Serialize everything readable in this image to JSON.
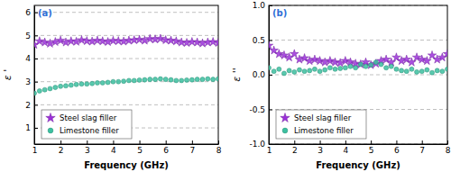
{
  "chart_data": [
    {
      "type": "scatter",
      "title": "(a)",
      "x_label": "Frequency (GHz)",
      "y_label": "ε '",
      "x": [
        1,
        1.2,
        1.4,
        1.6,
        1.8,
        2,
        2.2,
        2.4,
        2.6,
        2.8,
        3,
        3.2,
        3.4,
        3.6,
        3.8,
        4,
        4.2,
        4.4,
        4.6,
        4.8,
        5,
        5.2,
        5.4,
        5.6,
        5.8,
        6,
        6.2,
        6.4,
        6.6,
        6.8,
        7,
        7.2,
        7.4,
        7.6,
        7.8,
        8
      ],
      "xlim": [
        1,
        8
      ],
      "xticks": [
        1,
        2,
        3,
        4,
        5,
        6,
        7,
        8
      ],
      "ylim": [
        0.3,
        6.3
      ],
      "yticks": [
        1,
        2,
        3,
        4,
        5,
        6
      ],
      "grid": true,
      "legend": "lower left",
      "series": [
        {
          "name": "Steel slag filler",
          "color": "#9b30d9",
          "marker": "star",
          "values": [
            4.6,
            4.75,
            4.7,
            4.65,
            4.72,
            4.78,
            4.7,
            4.75,
            4.73,
            4.8,
            4.76,
            4.74,
            4.78,
            4.75,
            4.72,
            4.77,
            4.76,
            4.74,
            4.78,
            4.8,
            4.82,
            4.78,
            4.85,
            4.83,
            4.86,
            4.8,
            4.78,
            4.75,
            4.7,
            4.68,
            4.72,
            4.7,
            4.66,
            4.7,
            4.72,
            4.68
          ]
        },
        {
          "name": "Limestone filler",
          "color": "#3cc0a0",
          "marker": "circle",
          "values": [
            2.5,
            2.6,
            2.65,
            2.7,
            2.75,
            2.8,
            2.82,
            2.85,
            2.88,
            2.9,
            2.9,
            2.92,
            2.95,
            2.95,
            2.97,
            3.0,
            3.0,
            3.02,
            3.05,
            3.05,
            3.07,
            3.08,
            3.1,
            3.1,
            3.12,
            3.1,
            3.08,
            3.05,
            3.05,
            3.07,
            3.08,
            3.1,
            3.1,
            3.12,
            3.1,
            3.12
          ]
        }
      ]
    },
    {
      "type": "scatter",
      "title": "(b)",
      "x_label": "Frequency (GHz)",
      "y_label": "ε ''",
      "x": [
        1,
        1.2,
        1.4,
        1.6,
        1.8,
        2,
        2.2,
        2.4,
        2.6,
        2.8,
        3,
        3.2,
        3.4,
        3.6,
        3.8,
        4,
        4.2,
        4.4,
        4.6,
        4.8,
        5,
        5.2,
        5.4,
        5.6,
        5.8,
        6,
        6.2,
        6.4,
        6.6,
        6.8,
        7,
        7.2,
        7.4,
        7.6,
        7.8,
        8
      ],
      "xlim": [
        1,
        8
      ],
      "xticks": [
        1,
        2,
        3,
        4,
        5,
        6,
        7,
        8
      ],
      "ylim": [
        -1,
        1
      ],
      "yticks": [
        {
          "value": -1,
          "label": "-1.0"
        },
        {
          "value": -0.5,
          "label": "-0.5"
        },
        {
          "value": 0,
          "label": "0.0"
        },
        {
          "value": 0.5,
          "label": "0.5"
        },
        {
          "value": 1,
          "label": "1.0"
        }
      ],
      "grid": true,
      "legend": "lower left",
      "series": [
        {
          "name": "Steel slag filler",
          "color": "#9b30d9",
          "marker": "star",
          "values": [
            0.42,
            0.35,
            0.3,
            0.28,
            0.25,
            0.3,
            0.22,
            0.24,
            0.2,
            0.22,
            0.2,
            0.18,
            0.2,
            0.18,
            0.17,
            0.2,
            0.18,
            0.16,
            0.15,
            0.18,
            0.14,
            0.16,
            0.2,
            0.22,
            0.18,
            0.25,
            0.2,
            0.22,
            0.18,
            0.25,
            0.22,
            0.2,
            0.28,
            0.22,
            0.25,
            0.3
          ]
        },
        {
          "name": "Limestone filler",
          "color": "#3cc0a0",
          "marker": "circle",
          "values": [
            0.1,
            0.05,
            0.08,
            0.02,
            0.06,
            0.04,
            0.07,
            0.05,
            0.06,
            0.08,
            0.05,
            0.07,
            0.1,
            0.08,
            0.09,
            0.1,
            0.12,
            0.1,
            0.15,
            0.12,
            0.14,
            0.18,
            0.15,
            0.1,
            0.12,
            0.08,
            0.06,
            0.05,
            0.08,
            0.04,
            0.05,
            0.07,
            0.03,
            0.06,
            0.05,
            0.08
          ]
        }
      ]
    }
  ]
}
